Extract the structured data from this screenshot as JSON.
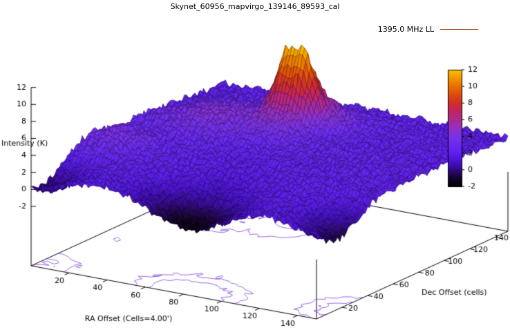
{
  "title": "Skynet_60956_mapvirgo_139146_89593_cal",
  "legend": {
    "label": "1395.0 MHz LL",
    "line_color": "#993300"
  },
  "chart_data": {
    "type": "surface",
    "title": "Skynet_60956_mapvirgo_139146_89593_cal",
    "xlabel": "RA Offset (Cells=4.00')",
    "ylabel": "Dec Offset (cells)",
    "zlabel": "Intensity (K)",
    "x_range": [
      0,
      150
    ],
    "y_range": [
      0,
      150
    ],
    "z_range": [
      -2,
      12
    ],
    "x_ticks": [
      20,
      40,
      60,
      80,
      100,
      120,
      140
    ],
    "y_ticks": [
      20,
      40,
      60,
      80,
      100,
      120,
      140
    ],
    "z_ticks": [
      -2,
      0,
      2,
      4,
      6,
      8,
      10,
      12
    ],
    "colorbar": {
      "ticks": [
        -2,
        0,
        2,
        4,
        6,
        8,
        10,
        12
      ]
    },
    "palette": [
      [
        -2.0,
        "#000000"
      ],
      [
        -1.2,
        "#10021f"
      ],
      [
        -0.4,
        "#26065e"
      ],
      [
        0.4,
        "#3c0ca6"
      ],
      [
        1.2,
        "#4f14d8"
      ],
      [
        2.0,
        "#5e1fee"
      ],
      [
        3.0,
        "#6b2af4"
      ],
      [
        4.0,
        "#7b31e8"
      ],
      [
        5.0,
        "#9430c4"
      ],
      [
        6.0,
        "#ad2a90"
      ],
      [
        7.0,
        "#c22460"
      ],
      [
        8.0,
        "#d22f2a"
      ],
      [
        9.0,
        "#dd4c0e"
      ],
      [
        10.0,
        "#e86f00"
      ],
      [
        11.0,
        "#f29500"
      ],
      [
        12.0,
        "#fbc200"
      ]
    ],
    "contour_levels": [
      0,
      1,
      4,
      8
    ],
    "noise_amp": 0.45,
    "grid": {
      "x_start": 0,
      "x_step": 10,
      "y_start": 0,
      "y_step": 10,
      "values": [
        [
          0.0,
          0.3,
          1.3,
          1.9,
          1.9,
          1.4,
          0.3,
          -0.8,
          -1.4,
          -0.9,
          0.2,
          1.4,
          1.9,
          1.8,
          1.2,
          0.9
        ],
        [
          -0.3,
          0.2,
          1.2,
          1.9,
          1.8,
          1.0,
          0.0,
          -1.0,
          -1.5,
          -1.0,
          0.1,
          1.3,
          1.9,
          1.5,
          0.3,
          -0.6
        ],
        [
          0.8,
          1.3,
          1.9,
          2.2,
          2.1,
          1.6,
          0.9,
          0.4,
          0.3,
          0.6,
          1.2,
          1.8,
          2.0,
          1.5,
          0.2,
          -0.8
        ],
        [
          2.0,
          2.9,
          2.6,
          2.4,
          2.3,
          2.0,
          1.6,
          1.3,
          1.1,
          1.3,
          1.7,
          2.0,
          2.2,
          1.9,
          1.0,
          0.3
        ],
        [
          3.2,
          3.6,
          3.4,
          2.8,
          2.4,
          2.2,
          2.0,
          1.8,
          1.7,
          1.9,
          2.1,
          2.2,
          2.3,
          2.2,
          1.8,
          1.4
        ],
        [
          3.4,
          4.0,
          3.7,
          3.0,
          2.6,
          2.4,
          2.2,
          2.1,
          2.1,
          2.2,
          2.3,
          2.3,
          2.4,
          2.3,
          2.2,
          2.1
        ],
        [
          3.1,
          3.6,
          3.3,
          2.9,
          2.7,
          2.5,
          2.3,
          2.2,
          2.2,
          2.3,
          2.4,
          2.4,
          2.4,
          2.3,
          2.3,
          2.2
        ],
        [
          2.6,
          2.9,
          3.0,
          3.1,
          3.0,
          2.8,
          2.5,
          2.4,
          2.4,
          2.4,
          2.5,
          2.5,
          2.5,
          2.4,
          2.3,
          2.3
        ],
        [
          2.8,
          3.2,
          3.6,
          3.8,
          3.8,
          3.3,
          2.9,
          2.7,
          2.6,
          2.6,
          2.6,
          2.6,
          2.5,
          2.5,
          2.4,
          2.3
        ],
        [
          2.9,
          3.5,
          4.0,
          4.4,
          4.3,
          4.0,
          4.2,
          4.0,
          3.3,
          2.9,
          2.7,
          2.6,
          2.6,
          2.5,
          2.4,
          2.3
        ],
        [
          2.6,
          3.1,
          3.8,
          4.3,
          4.3,
          4.2,
          5.8,
          5.6,
          3.3,
          2.6,
          2.5,
          2.5,
          2.4,
          2.4,
          2.3,
          2.3
        ],
        [
          2.5,
          2.8,
          3.4,
          3.8,
          3.8,
          4.3,
          11.6,
          12.2,
          5.6,
          3.5,
          2.6,
          2.5,
          2.4,
          2.4,
          2.3,
          2.3
        ],
        [
          2.4,
          2.6,
          3.0,
          3.2,
          3.2,
          3.2,
          5.3,
          6.7,
          4.9,
          3.4,
          2.7,
          2.5,
          2.4,
          2.4,
          2.3,
          2.3
        ],
        [
          2.3,
          2.4,
          2.6,
          2.8,
          2.8,
          2.7,
          2.7,
          3.3,
          3.5,
          3.0,
          2.6,
          2.4,
          2.4,
          2.3,
          2.3,
          2.2
        ],
        [
          2.2,
          2.3,
          2.4,
          2.5,
          2.5,
          2.4,
          2.4,
          2.6,
          2.7,
          2.5,
          2.4,
          2.3,
          2.3,
          2.3,
          2.2,
          2.2
        ],
        [
          2.2,
          2.2,
          2.3,
          2.3,
          2.3,
          2.3,
          2.3,
          2.4,
          2.4,
          2.3,
          2.3,
          2.2,
          2.2,
          2.2,
          2.2,
          2.1
        ]
      ]
    }
  }
}
